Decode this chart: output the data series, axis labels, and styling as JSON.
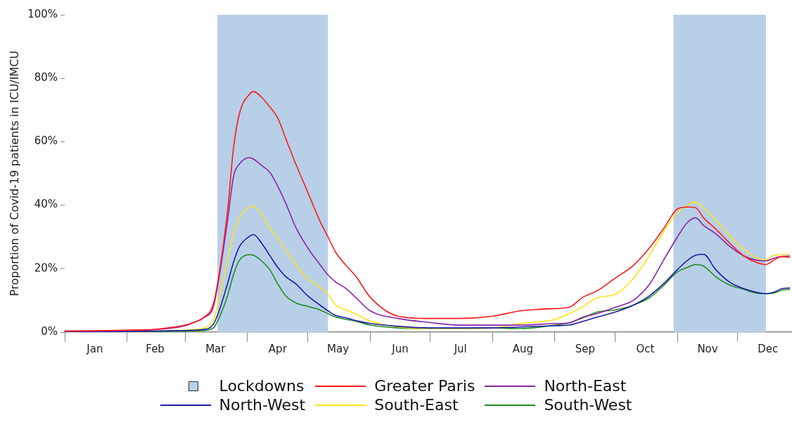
{
  "chart_data": {
    "type": "line",
    "ylabel": "Proportion of Covid-19 patients in ICU/IMCU",
    "x": [
      "--01-01",
      "--02-01",
      "--02-15",
      "--03-01",
      "--03-05",
      "--03-10",
      "--03-15",
      "--03-18",
      "--03-22",
      "--03-25",
      "--03-28",
      "--04-02",
      "--04-04",
      "--04-08",
      "--04-12",
      "--04-16",
      "--04-20",
      "--04-25",
      "--05-01",
      "--05-07",
      "--05-11",
      "--05-15",
      "--05-20",
      "--05-25",
      "--06-01",
      "--06-15",
      "--07-01",
      "--07-15",
      "--08-01",
      "--08-15",
      "--09-01",
      "--09-08",
      "--09-15",
      "--09-22",
      "--10-01",
      "--10-10",
      "--10-18",
      "--10-25",
      "--11-01",
      "--11-06",
      "--11-10",
      "--11-14",
      "--11-20",
      "--11-27",
      "--12-04",
      "--12-10",
      "--12-15",
      "--12-19",
      "--12-23",
      "--12-27"
    ],
    "series": [
      {
        "name": "Greater Paris",
        "color": "#ff1a1a",
        "values": [
          0.3,
          0.6,
          0.9,
          2.2,
          3,
          4.5,
          9,
          19,
          38,
          58,
          69,
          75,
          75.8,
          74,
          71,
          67.5,
          61,
          53,
          44,
          35,
          30,
          25,
          21,
          17.5,
          11,
          5,
          4.3,
          4.3,
          5,
          6.7,
          7.4,
          7.8,
          11,
          13,
          17,
          21,
          26.5,
          32.5,
          38.8,
          39.4,
          39.2,
          36,
          32.5,
          28,
          24,
          22,
          21.3,
          22.7,
          23.8,
          23.5
        ]
      },
      {
        "name": "North-East",
        "color": "#8e24aa",
        "values": [
          0.3,
          0.5,
          0.8,
          2,
          3,
          4.5,
          8,
          18,
          35,
          49,
          53,
          55,
          54.5,
          52.5,
          50.4,
          46,
          40.6,
          33,
          26.5,
          21.3,
          18,
          15.7,
          13.7,
          10.8,
          6.7,
          4.3,
          3,
          2.2,
          2.2,
          2.2,
          2.7,
          2.9,
          4.7,
          5.8,
          7.8,
          10,
          15,
          22.6,
          30,
          34.6,
          36,
          33.6,
          31,
          27,
          24,
          22.7,
          22.4,
          23.3,
          23.8,
          24
        ]
      },
      {
        "name": "North-West",
        "color": "#1c1ca6",
        "values": [
          0.1,
          0.2,
          0.3,
          0.5,
          0.6,
          0.8,
          2.5,
          7,
          15.2,
          22,
          27,
          30.2,
          30.7,
          28,
          24.2,
          20.4,
          17.5,
          15.2,
          11.4,
          8.5,
          6.7,
          5.2,
          4.5,
          3.6,
          2.7,
          1.8,
          1.3,
          1.3,
          1.3,
          1.6,
          2,
          2.2,
          3.4,
          4.7,
          6.3,
          8.5,
          11.4,
          15.2,
          19.7,
          22.6,
          24.2,
          24.5,
          19.7,
          15.7,
          13.7,
          12.6,
          12.1,
          12.6,
          13.7,
          13.9
        ]
      },
      {
        "name": "South-East",
        "color": "#ffe21a",
        "values": [
          null,
          null,
          0.4,
          0.6,
          0.8,
          1.2,
          4,
          10.8,
          22.7,
          31,
          36,
          39.5,
          39.7,
          37,
          33,
          29.4,
          25.8,
          21.3,
          16.8,
          14.1,
          11.9,
          8.5,
          7,
          5.6,
          3.5,
          1.6,
          1.1,
          1.1,
          1.3,
          2.7,
          4,
          5.8,
          8,
          10.8,
          11.9,
          16.8,
          24.2,
          31.6,
          37.7,
          40,
          41,
          39.2,
          35.4,
          30.3,
          26,
          23.5,
          22.7,
          24.2,
          24.4,
          24.5
        ]
      },
      {
        "name": "South-West",
        "color": "#1f8c1f",
        "values": [
          0.1,
          0.2,
          0.2,
          0.3,
          0.4,
          0.5,
          1.3,
          4.7,
          11.4,
          18.2,
          22.7,
          24.4,
          24.2,
          22.4,
          19.7,
          15.2,
          11.4,
          9.2,
          8.1,
          7,
          5.8,
          4.7,
          4,
          3.4,
          2.2,
          1.3,
          1.1,
          1.1,
          1.3,
          1.1,
          2.2,
          2.9,
          4.5,
          6.3,
          7,
          8.5,
          10.8,
          14.6,
          19,
          20.4,
          21.3,
          20.8,
          17.5,
          14.8,
          13.5,
          12.3,
          12.1,
          12.3,
          13.2,
          13.5
        ]
      }
    ],
    "bands": [
      {
        "axis": "x",
        "from": "--03-17",
        "to": "--05-11",
        "label": "Lockdowns",
        "color": "#b8cfe8"
      },
      {
        "axis": "x",
        "from": "--10-30",
        "to": "--12-15",
        "color": "#b8cfe8"
      }
    ],
    "xlim": [
      "--01-01",
      "--12-28"
    ],
    "xticks": [
      {
        "value": "--01-01",
        "label": null
      },
      {
        "value": "--01-16",
        "label": "Jan"
      },
      {
        "value": "--02-01",
        "label": null
      },
      {
        "value": "--02-15",
        "label": "Feb"
      },
      {
        "value": "--03-01",
        "label": null
      },
      {
        "value": "--03-16",
        "label": "Mar"
      },
      {
        "value": "--04-01",
        "label": null
      },
      {
        "value": "--04-16",
        "label": "Apr"
      },
      {
        "value": "--05-01",
        "label": null
      },
      {
        "value": "--05-16",
        "label": "May"
      },
      {
        "value": "--06-01",
        "label": null
      },
      {
        "value": "--06-16",
        "label": "Jun"
      },
      {
        "value": "--07-01",
        "label": null
      },
      {
        "value": "--07-16",
        "label": "Jul"
      },
      {
        "value": "--08-01",
        "label": null
      },
      {
        "value": "--08-16",
        "label": "Aug"
      },
      {
        "value": "--09-01",
        "label": null
      },
      {
        "value": "--09-16",
        "label": "Sep"
      },
      {
        "value": "--10-01",
        "label": null
      },
      {
        "value": "--10-16",
        "label": "Oct"
      },
      {
        "value": "--11-01",
        "label": null
      },
      {
        "value": "--11-16",
        "label": "Nov"
      },
      {
        "value": "--12-01",
        "label": null
      },
      {
        "value": "--12-16",
        "label": "Dec"
      }
    ],
    "ylim": [
      0,
      100
    ],
    "yticks": [
      {
        "value": 0,
        "label": "0%"
      },
      {
        "value": 20,
        "label": "20%"
      },
      {
        "value": 40,
        "label": "40%"
      },
      {
        "value": 60,
        "label": "60%"
      },
      {
        "value": 80,
        "label": "80%"
      },
      {
        "value": 100,
        "label": "100%"
      }
    ],
    "grid": false,
    "legend": "bottom",
    "marker": "none",
    "line_style": "solid"
  }
}
